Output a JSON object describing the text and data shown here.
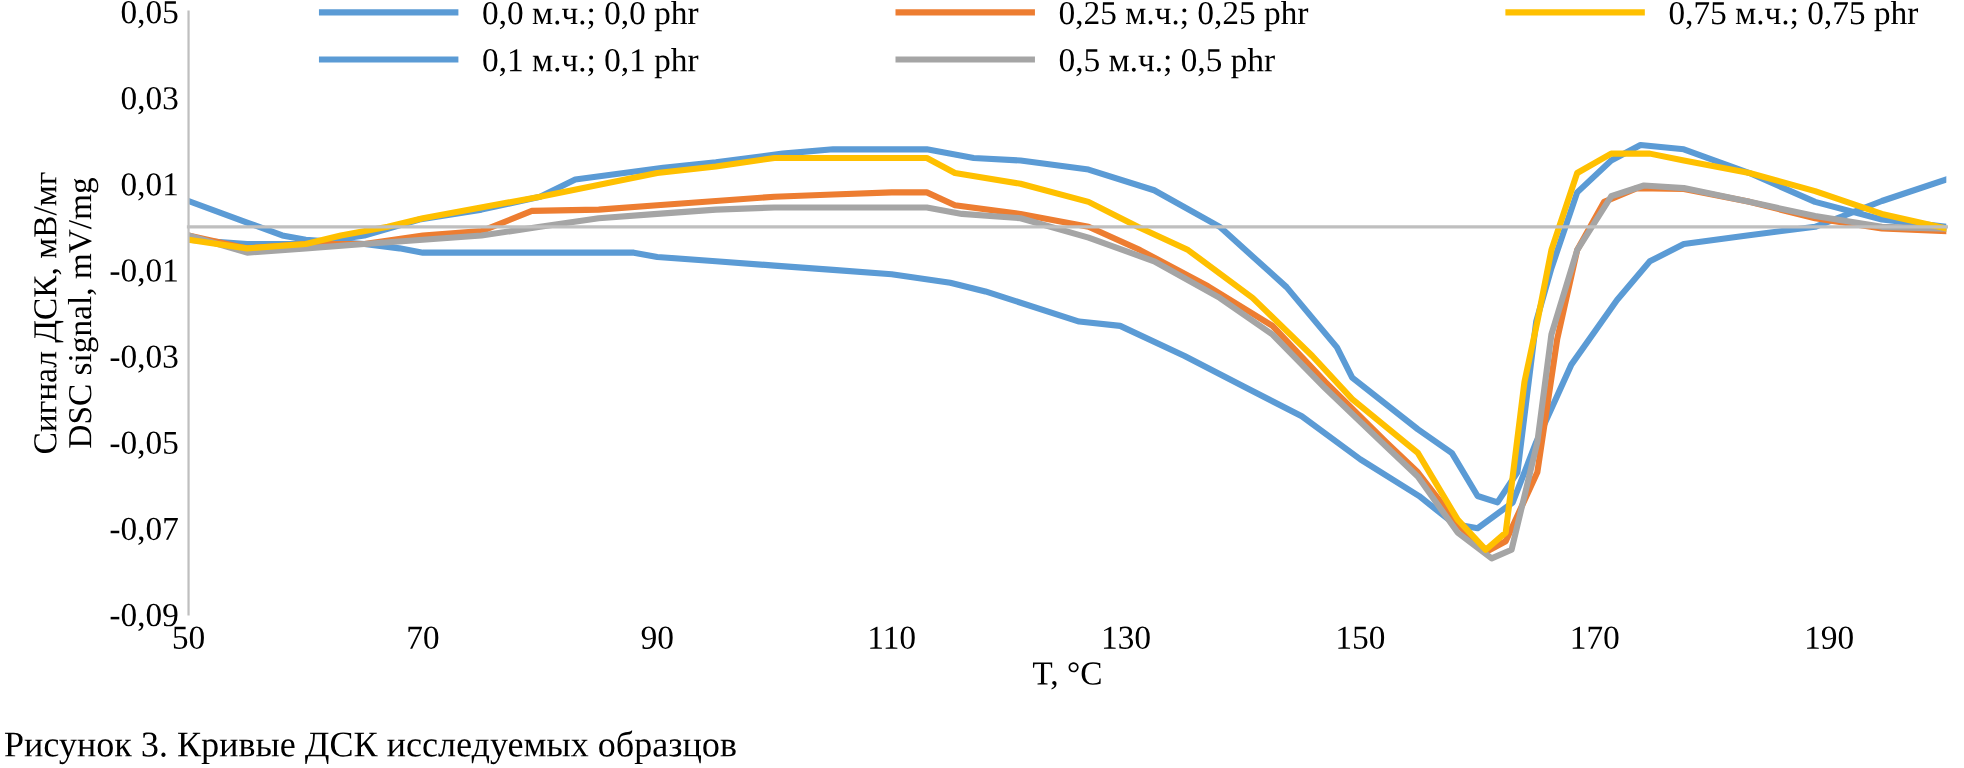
{
  "chart_data": {
    "type": "line",
    "xlabel": "T, °C",
    "ylabel": "Сигнал ДСК, мВ/мг\nDSC signal, mV/mg",
    "annotations": [
      "Рисунок 3. Кривые ДСК исследуемых образцов"
    ],
    "xlim": [
      50,
      200
    ],
    "ylim": [
      -0.09,
      0.05
    ],
    "xticks": [
      50,
      70,
      90,
      110,
      130,
      150,
      170,
      190
    ],
    "yticks": [
      {
        "value": 0.05,
        "label": "0,05"
      },
      {
        "value": 0.03,
        "label": "0,03"
      },
      {
        "value": 0.01,
        "label": "0,01"
      },
      {
        "value": -0.01,
        "label": "-0,01"
      },
      {
        "value": -0.03,
        "label": "-0,03"
      },
      {
        "value": -0.05,
        "label": "-0,05"
      },
      {
        "value": -0.07,
        "label": "-0,07"
      },
      {
        "value": -0.09,
        "label": "-0,09"
      }
    ],
    "grid": false,
    "legend": "top",
    "marker": "none",
    "line_style": "solid",
    "series": [
      {
        "name": "0,0 м.ч.; 0,0 phr",
        "color": "#5b9bd5",
        "x": [
          50,
          55,
          58,
          60,
          65,
          68,
          70,
          80,
          88,
          90,
          95,
          100,
          105,
          110,
          115,
          118,
          126,
          129.5,
          135,
          140,
          145,
          150,
          155,
          158,
          160,
          163,
          165,
          168,
          171.9,
          174.7,
          177.6,
          183,
          188.8,
          194.5,
          200
        ],
        "values": [
          0.006,
          0.001,
          -0.002,
          -0.003,
          -0.004,
          -0.005,
          -0.006,
          -0.006,
          -0.006,
          -0.007,
          -0.008,
          -0.009,
          -0.01,
          -0.011,
          -0.013,
          -0.015,
          -0.022,
          -0.023,
          -0.03,
          -0.037,
          -0.044,
          -0.054,
          -0.0625,
          -0.069,
          -0.07,
          -0.064,
          -0.05,
          -0.032,
          -0.017,
          -0.008,
          -0.004,
          -0.002,
          0.0,
          0.006,
          0.011
        ]
      },
      {
        "name": "0,1 м.ч.; 0,1 phr",
        "color": "#5b9bd5",
        "x": [
          50,
          55,
          60,
          65,
          69.7,
          75,
          80,
          83,
          90.5,
          95,
          100.7,
          105,
          110,
          113,
          117,
          121,
          126.8,
          132.4,
          138,
          143.7,
          148,
          149.3,
          154.9,
          157.8,
          160,
          161.7,
          163.4,
          165,
          166.3,
          168.5,
          171.4,
          173.9,
          177.6,
          183.2,
          188.8,
          194.5,
          200
        ],
        "values": [
          -0.003,
          -0.004,
          -0.004,
          -0.002,
          0.0017,
          0.004,
          0.007,
          0.011,
          0.0137,
          0.015,
          0.017,
          0.018,
          0.018,
          0.018,
          0.016,
          0.0154,
          0.0133,
          0.0085,
          0.0,
          -0.014,
          -0.028,
          -0.035,
          -0.047,
          -0.0525,
          -0.0625,
          -0.064,
          -0.057,
          -0.022,
          -0.0096,
          0.008,
          0.0154,
          0.019,
          0.018,
          0.0125,
          0.0058,
          0.0017,
          0.0
        ]
      },
      {
        "name": "0,25 м.ч.; 0,25 phr",
        "color": "#ed7d31",
        "x": [
          50,
          55,
          60,
          65,
          70,
          75,
          79.3,
          85,
          90,
          95,
          100,
          105,
          110,
          113,
          115.4,
          121,
          126.8,
          131.2,
          137,
          142.5,
          147,
          152.2,
          154.9,
          158.3,
          160.7,
          162.4,
          165.1,
          166.8,
          168.5,
          170.8,
          173.6,
          177.6,
          183.2,
          188.8,
          194.5,
          200
        ],
        "values": [
          -0.002,
          -0.005,
          -0.004,
          -0.004,
          -0.002,
          -0.001,
          0.0037,
          0.004,
          0.005,
          0.006,
          0.007,
          0.0075,
          0.008,
          0.008,
          0.005,
          0.003,
          0.0,
          -0.0054,
          -0.0138,
          -0.023,
          -0.036,
          -0.05,
          -0.057,
          -0.069,
          -0.0755,
          -0.073,
          -0.057,
          -0.026,
          -0.0054,
          0.0058,
          0.009,
          0.0088,
          0.0058,
          0.002,
          -0.0004,
          -0.001
        ]
      },
      {
        "name": "0,5 м.ч.; 0,5 phr",
        "color": "#a5a5a5",
        "x": [
          50,
          55,
          60,
          65,
          70,
          75,
          80,
          85,
          90,
          95,
          100,
          110,
          113,
          116,
          121,
          126.8,
          132.4,
          138,
          142.5,
          147,
          152.2,
          154.9,
          158.3,
          161.2,
          162.9,
          165.1,
          166.3,
          168.5,
          171.4,
          174.2,
          177.6,
          183.2,
          188.8,
          194.5,
          200
        ],
        "values": [
          -0.002,
          -0.006,
          -0.005,
          -0.004,
          -0.003,
          -0.002,
          0.0,
          0.002,
          0.003,
          0.004,
          0.0045,
          0.0045,
          0.0045,
          0.003,
          0.002,
          -0.0025,
          -0.008,
          -0.0165,
          -0.025,
          -0.0375,
          -0.051,
          -0.058,
          -0.071,
          -0.077,
          -0.075,
          -0.05,
          -0.025,
          -0.0054,
          0.0071,
          0.0096,
          0.009,
          0.0058,
          0.0025,
          0.0,
          -0.0004
        ]
      },
      {
        "name": "0,75 м.ч.; 0,75 phr",
        "color": "#ffc000",
        "x": [
          50,
          55,
          60,
          63,
          67,
          70,
          80,
          90,
          95,
          100,
          110,
          113,
          115.4,
          121,
          126.8,
          131,
          135.3,
          140.8,
          145.9,
          149.3,
          154.9,
          158.3,
          160.7,
          162.4,
          164,
          165.1,
          166.3,
          168.5,
          171.4,
          174.7,
          177.6,
          183.2,
          188.8,
          194.5,
          200
        ],
        "values": [
          -0.003,
          -0.005,
          -0.004,
          -0.002,
          0.0,
          0.002,
          0.007,
          0.0125,
          0.014,
          0.016,
          0.016,
          0.016,
          0.0125,
          0.01,
          0.0058,
          0.0,
          -0.0054,
          -0.0165,
          -0.03,
          -0.04,
          -0.0525,
          -0.068,
          -0.075,
          -0.071,
          -0.036,
          -0.022,
          -0.0054,
          0.0125,
          0.017,
          0.017,
          0.0154,
          0.0125,
          0.0083,
          0.003,
          -0.0004
        ]
      }
    ]
  }
}
